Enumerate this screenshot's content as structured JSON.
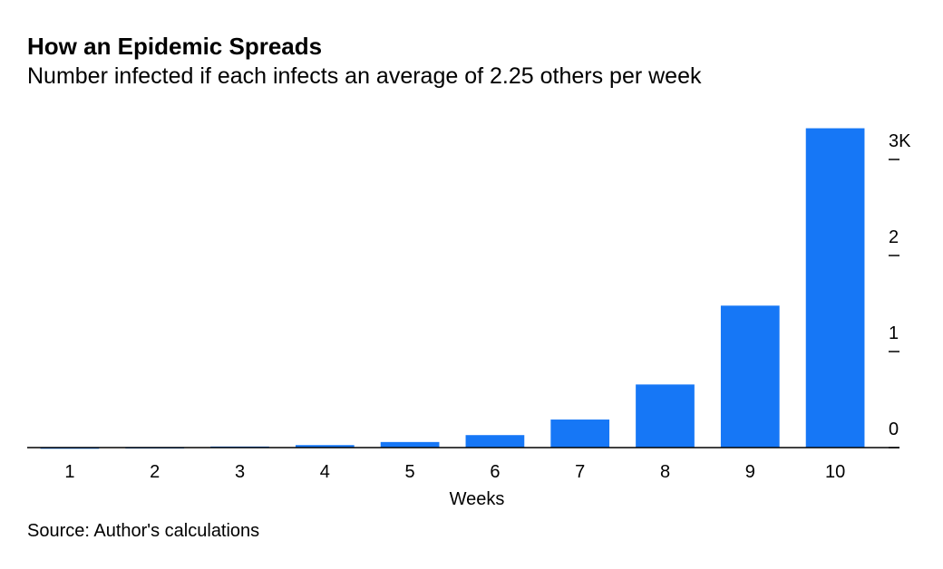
{
  "chart_data": {
    "type": "bar",
    "title": "How an Epidemic Spreads",
    "subtitle": "Number infected if each infects an average of 2.25 others per week",
    "x_label": "Weeks",
    "source": "Source: Author's calculations",
    "categories": [
      "1",
      "2",
      "3",
      "4",
      "5",
      "6",
      "7",
      "8",
      "9",
      "10"
    ],
    "values": [
      2,
      5,
      11,
      26,
      58,
      130,
      292,
      657,
      1478,
      3325
    ],
    "color": "#1677f6",
    "ylim": [
      0,
      3400
    ],
    "yticks": [
      0,
      {
        "value": 1000,
        "label": "1"
      },
      {
        "value": 2000,
        "label": "2"
      },
      {
        "value": 3000,
        "label": "3K"
      }
    ],
    "y_axis_side": "right"
  }
}
